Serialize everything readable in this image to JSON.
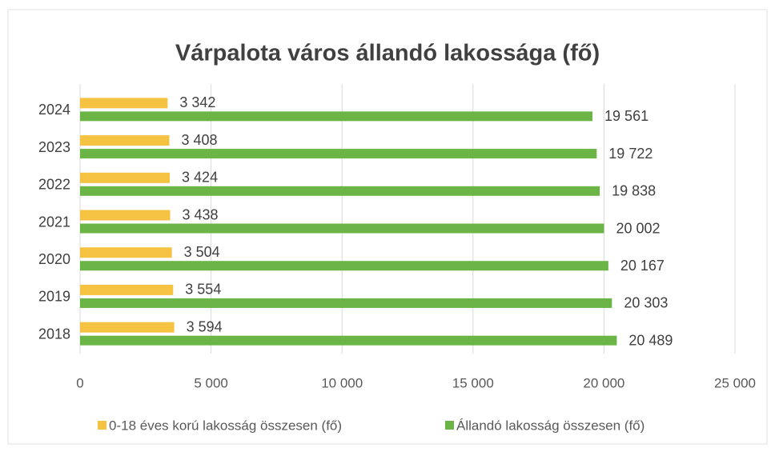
{
  "chart_data": {
    "type": "bar",
    "orientation": "horizontal",
    "title": "Várpalota város állandó lakossága (fő)",
    "categories": [
      "2024",
      "2023",
      "2022",
      "2021",
      "2020",
      "2019",
      "2018"
    ],
    "series": [
      {
        "name": "0-18 éves korú lakosság összesen (fő)",
        "color": "#f5c242",
        "values": [
          3342,
          3408,
          3424,
          3438,
          3504,
          3554,
          3594
        ],
        "value_labels": [
          "3 342",
          "3 408",
          "3 424",
          "3 438",
          "3 504",
          "3 554",
          "3 594"
        ]
      },
      {
        "name": "Állandó lakosság összesen (fő)",
        "color": "#6ab545",
        "values": [
          19561,
          19722,
          19838,
          20002,
          20167,
          20303,
          20489
        ],
        "value_labels": [
          "19 561",
          "19 722",
          "19 838",
          "20 002",
          "20 167",
          "20 303",
          "20 489"
        ]
      }
    ],
    "xlim": [
      0,
      25000
    ],
    "xticks": [
      0,
      {
        "value": 5000,
        "label": "5 000"
      },
      {
        "value": 10000,
        "label": "10 000"
      },
      {
        "value": 15000,
        "label": "15 000"
      },
      {
        "value": 20000,
        "label": "20 000"
      },
      {
        "value": 25000,
        "label": "25 000"
      }
    ],
    "grid": true,
    "legend": "bottom"
  }
}
